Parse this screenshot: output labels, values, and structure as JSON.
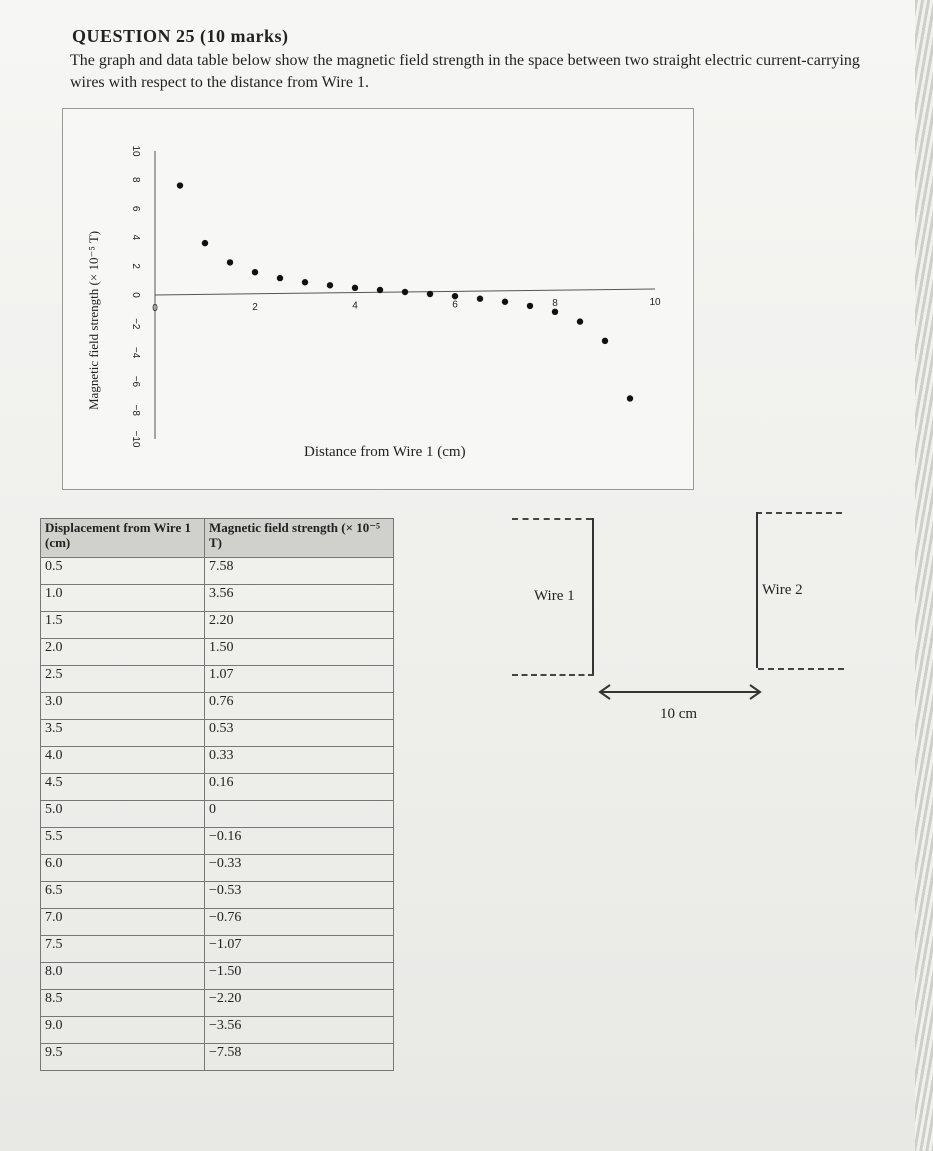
{
  "question": {
    "heading": "QUESTION 25 (10 marks)",
    "intro": "The graph and data table below show the magnetic field strength in the space between two straight electric current-carrying wires with respect to the distance from Wire 1."
  },
  "chart_data": {
    "type": "scatter",
    "xlabel": "Distance from Wire 1 (cm)",
    "ylabel": "Magnetic field strength (× 10⁻⁵ T)",
    "xlim": [
      0,
      10
    ],
    "ylim": [
      -10,
      10
    ],
    "x_ticks": [
      "0",
      "2",
      "4",
      "6",
      "8",
      "10"
    ],
    "y_ticks": [
      "10",
      "8",
      "6",
      "4",
      "2",
      "0",
      "−2",
      "−4",
      "−6",
      "−8",
      "−10"
    ],
    "x": [
      0.5,
      1.0,
      1.5,
      2.0,
      2.5,
      3.0,
      3.5,
      4.0,
      4.5,
      5.0,
      5.5,
      6.0,
      6.5,
      7.0,
      7.5,
      8.0,
      8.5,
      9.0,
      9.5
    ],
    "y": [
      7.58,
      3.56,
      2.2,
      1.5,
      1.07,
      0.76,
      0.53,
      0.33,
      0.16,
      0,
      -0.16,
      -0.33,
      -0.53,
      -0.76,
      -1.07,
      -1.5,
      -2.2,
      -3.56,
      -7.58
    ]
  },
  "table": {
    "header_col1": "Displacement from Wire 1 (cm)",
    "header_col2": "Magnetic field strength (× 10⁻⁵ T)",
    "rows": [
      [
        "0.5",
        "7.58"
      ],
      [
        "1.0",
        "3.56"
      ],
      [
        "1.5",
        "2.20"
      ],
      [
        "2.0",
        "1.50"
      ],
      [
        "2.5",
        "1.07"
      ],
      [
        "3.0",
        "0.76"
      ],
      [
        "3.5",
        "0.53"
      ],
      [
        "4.0",
        "0.33"
      ],
      [
        "4.5",
        "0.16"
      ],
      [
        "5.0",
        "0"
      ],
      [
        "5.5",
        "−0.16"
      ],
      [
        "6.0",
        "−0.33"
      ],
      [
        "6.5",
        "−0.53"
      ],
      [
        "7.0",
        "−0.76"
      ],
      [
        "7.5",
        "−1.07"
      ],
      [
        "8.0",
        "−1.50"
      ],
      [
        "8.5",
        "−2.20"
      ],
      [
        "9.0",
        "−3.56"
      ],
      [
        "9.5",
        "−7.58"
      ]
    ]
  },
  "diagram": {
    "wire1_label": "Wire 1",
    "wire2_label": "Wire 2",
    "separation_label": "10 cm"
  }
}
